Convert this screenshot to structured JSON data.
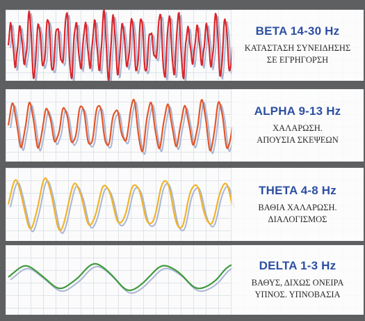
{
  "background_color": "#5e5f61",
  "panels": [
    {
      "title": "BETA 14-30 Hz",
      "desc_line1": "ΚΑΤΑΣΤΑΣΗ ΣΥΝΕΙΔΗΣΗΣ",
      "desc_line2": "ΣΕ ΕΓΡΗΓΟΡΣΗ",
      "wave_color": "#d8262b",
      "shadow_color": "#a9b6d4"
    },
    {
      "title": "ALPHA 9-13 Hz",
      "desc_line1": "ΧΑΛΑΡΩΣΗ.",
      "desc_line2": "ΑΠΟΥΣΙΑ ΣΚΕΨΕΩΝ",
      "wave_color": "#e2562a",
      "shadow_color": "#a9b6d4"
    },
    {
      "title": "THETA 4-8 Hz",
      "desc_line1": "ΒΑΘΙΑ ΧΑΛΑΡΩΣΗ.",
      "desc_line2": "ΔΙΑΛΟΓΙΣΜΟΣ",
      "wave_color": "#f0b32a",
      "shadow_color": "#a9b6d4"
    },
    {
      "title": "DELTA 1-3 Hz",
      "desc_line1": "ΒΑΘΥΣ, ΔΙΧΩΣ ΟΝΕΙΡΑ",
      "desc_line2": "ΥΠΝΟΣ. ΥΠΝΟΒΑΣΙΑ",
      "wave_color": "#3f9a3c",
      "shadow_color": "#a9b6d4"
    }
  ]
}
